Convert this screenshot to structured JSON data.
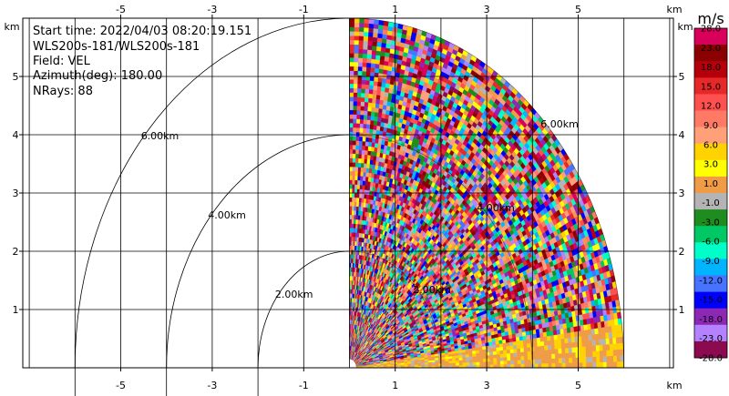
{
  "info": {
    "start_time": "Start time: 2022/04/03 08:20:19.151",
    "instrument": "WLS200s-181/WLS200s-181",
    "field": "Field: VEL",
    "azimuth": "Azimuth(deg): 180.00",
    "nrays": "NRays: 88"
  },
  "axis_unit": "km",
  "colorbar": {
    "unit": "m/s",
    "levels": [
      "28.0",
      "23.0",
      "18.0",
      "15.0",
      "12.0",
      "9.0",
      "6.0",
      "3.0",
      "1.0",
      "-1.0",
      "-3.0",
      "-6.0",
      "-9.0",
      "-12.0",
      "-15.0",
      "-18.0",
      "-23.0",
      "-28.0"
    ],
    "colors": [
      "#d8005a",
      "#8b0000",
      "#b5000c",
      "#e62828",
      "#ff5050",
      "#ff7a64",
      "#ffa079",
      "#ffd200",
      "#ffff00",
      "#f09b46",
      "#b4b4b4",
      "#1e8c1e",
      "#00c864",
      "#00ffc8",
      "#00b4ff",
      "#4673ff",
      "#0000ff",
      "#8c28b4",
      "#b482ff",
      "#8b0a50"
    ]
  },
  "chart_data": {
    "type": "heatmap",
    "title": "",
    "xlabel": "km",
    "ylabel": "km",
    "xlim": [
      -6,
      6
    ],
    "ylim": [
      0,
      6
    ],
    "x_ticks": [
      "-5",
      "-3",
      "-1",
      "1",
      "3",
      "5"
    ],
    "y_ticks": [
      "1",
      "2",
      "3",
      "4",
      "5"
    ],
    "range_rings_km": [
      2,
      4,
      6
    ],
    "range_ring_labels": [
      "2.00km",
      "4.00km",
      "6.00km"
    ],
    "inner_ring_labels": [
      "2.00km",
      "4.00km",
      "6.00km"
    ],
    "grid": true,
    "sector": {
      "min_x_km": -1.5,
      "max_range_km": 6.0
    },
    "field": "VEL",
    "azimuth_deg": 180.0,
    "n_rays": 88
  }
}
